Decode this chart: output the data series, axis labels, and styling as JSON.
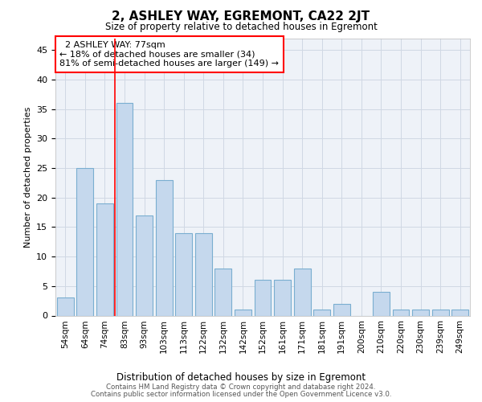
{
  "title": "2, ASHLEY WAY, EGREMONT, CA22 2JT",
  "subtitle": "Size of property relative to detached houses in Egremont",
  "xlabel_bottom": "Distribution of detached houses by size in Egremont",
  "ylabel": "Number of detached properties",
  "bar_labels": [
    "54sqm",
    "64sqm",
    "74sqm",
    "83sqm",
    "93sqm",
    "103sqm",
    "113sqm",
    "122sqm",
    "132sqm",
    "142sqm",
    "152sqm",
    "161sqm",
    "171sqm",
    "181sqm",
    "191sqm",
    "200sqm",
    "210sqm",
    "220sqm",
    "230sqm",
    "239sqm",
    "249sqm"
  ],
  "bar_values": [
    3,
    25,
    19,
    36,
    17,
    23,
    14,
    14,
    8,
    1,
    6,
    6,
    8,
    1,
    2,
    0,
    4,
    1,
    1,
    1,
    1
  ],
  "bar_color": "#c5d8ed",
  "bar_edgecolor": "#7aaed0",
  "property_label": "2 ASHLEY WAY: 77sqm",
  "pct_smaller": "18% of detached houses are smaller (34)",
  "pct_larger": "81% of semi-detached houses are larger (149)",
  "vline_x": 2.5,
  "ylim": [
    0,
    47
  ],
  "yticks": [
    0,
    5,
    10,
    15,
    20,
    25,
    30,
    35,
    40,
    45
  ],
  "grid_color": "#d0d8e4",
  "background_color": "#eef2f8",
  "footer_line1": "Contains HM Land Registry data © Crown copyright and database right 2024.",
  "footer_line2": "Contains public sector information licensed under the Open Government Licence v3.0."
}
